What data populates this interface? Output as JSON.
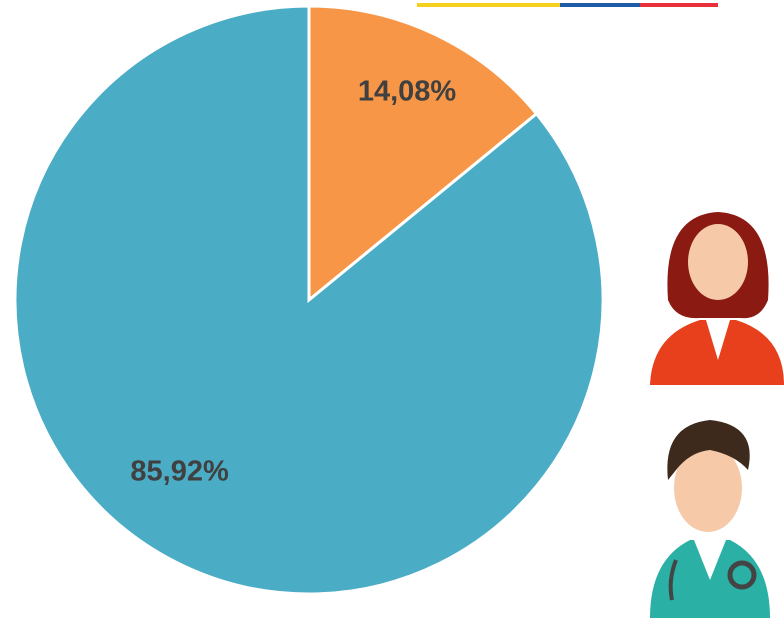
{
  "chart_data": {
    "type": "pie",
    "values": [
      14.08,
      85.92
    ],
    "value_labels": [
      "14,08%",
      "85,92%"
    ],
    "colors": [
      "#f79646",
      "#4bacc6"
    ]
  }
}
